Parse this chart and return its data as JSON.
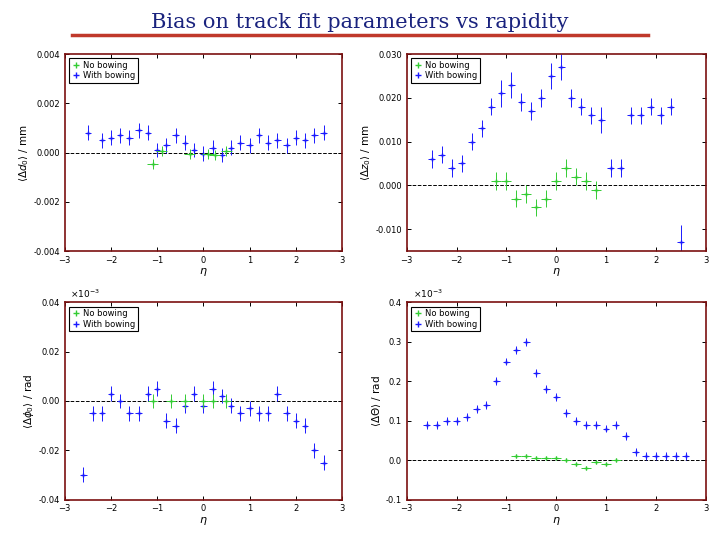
{
  "title": "Bias on track fit parameters vs rapidity",
  "title_color": "#1a237e",
  "underline_color": "#c0392b",
  "background_color": "#ffffff",
  "nb_color": "#33cc33",
  "wb_color": "#1a1aff",
  "border_color": "#7b1010",
  "subplots": [
    {
      "ylabel": "$\\langle\\Delta d_0\\rangle$ / mm",
      "xlabel": "$\\eta$",
      "xlim": [
        -3,
        3
      ],
      "ylim": [
        -0.004,
        0.004
      ],
      "yticks": [
        -0.004,
        -0.002,
        0.0,
        0.002,
        0.004
      ],
      "xticks": [
        -3,
        -2,
        -1,
        0,
        1,
        2,
        3
      ],
      "legend_loc": "upper left",
      "scale_factor": 1,
      "scale_label": "",
      "nb_x": [
        -1.1,
        -0.9,
        -0.3,
        0.1,
        0.25,
        0.5
      ],
      "nb_y": [
        -0.00045,
        5e-05,
        -5e-05,
        -5e-05,
        -0.0001,
        5e-05
      ],
      "nb_ex": [
        0.12,
        0.12,
        0.12,
        0.12,
        0.12,
        0.12
      ],
      "nb_ey": [
        0.0002,
        0.0002,
        0.0002,
        0.0002,
        0.0002,
        0.0002
      ],
      "wb_x": [
        -2.5,
        -2.2,
        -2.0,
        -1.8,
        -1.6,
        -1.4,
        -1.2,
        -1.0,
        -0.8,
        -0.6,
        -0.4,
        -0.2,
        0.0,
        0.2,
        0.4,
        0.6,
        0.8,
        1.0,
        1.2,
        1.4,
        1.6,
        1.8,
        2.0,
        2.2,
        2.4,
        2.6
      ],
      "wb_y": [
        0.0008,
        0.0005,
        0.0006,
        0.0007,
        0.0006,
        0.0009,
        0.0008,
        0.0001,
        0.0003,
        0.0007,
        0.0004,
        0.0001,
        -5e-05,
        0.0002,
        -0.0001,
        0.0002,
        0.0004,
        0.0003,
        0.0007,
        0.0004,
        0.0005,
        0.0003,
        0.0006,
        0.0005,
        0.0007,
        0.0008
      ],
      "wb_ex": [
        0.07,
        0.07,
        0.07,
        0.07,
        0.07,
        0.07,
        0.07,
        0.07,
        0.07,
        0.07,
        0.07,
        0.07,
        0.07,
        0.07,
        0.07,
        0.07,
        0.07,
        0.07,
        0.07,
        0.07,
        0.07,
        0.07,
        0.07,
        0.07,
        0.07,
        0.07
      ],
      "wb_ey": [
        0.0003,
        0.0003,
        0.0003,
        0.0003,
        0.0003,
        0.0003,
        0.0003,
        0.0003,
        0.0003,
        0.0003,
        0.0003,
        0.0003,
        0.0003,
        0.0003,
        0.0003,
        0.0003,
        0.0003,
        0.0003,
        0.0003,
        0.0003,
        0.0003,
        0.0003,
        0.0003,
        0.0003,
        0.0003,
        0.0003
      ]
    },
    {
      "ylabel": "$\\langle\\Delta z_0\\rangle$ / mm",
      "xlabel": "$\\eta$",
      "xlim": [
        -3,
        3
      ],
      "ylim": [
        -0.015,
        0.03
      ],
      "yticks": [
        -0.01,
        0.0,
        0.01,
        0.02,
        0.03
      ],
      "xticks": [
        -3,
        -2,
        -1,
        0,
        1,
        2,
        3
      ],
      "legend_loc": "upper left",
      "scale_factor": 1,
      "scale_label": "",
      "nb_x": [
        -1.2,
        -1.0,
        -0.8,
        -0.6,
        -0.4,
        -0.2,
        0.0,
        0.2,
        0.4,
        0.6,
        0.8
      ],
      "nb_y": [
        0.001,
        0.001,
        -0.003,
        -0.002,
        -0.005,
        -0.003,
        0.001,
        0.004,
        0.002,
        0.001,
        -0.001
      ],
      "nb_ex": [
        0.1,
        0.1,
        0.1,
        0.1,
        0.1,
        0.1,
        0.1,
        0.1,
        0.1,
        0.1,
        0.1
      ],
      "nb_ey": [
        0.002,
        0.002,
        0.002,
        0.002,
        0.002,
        0.002,
        0.002,
        0.002,
        0.002,
        0.002,
        0.002
      ],
      "wb_x": [
        -2.5,
        -2.3,
        -2.1,
        -1.9,
        -1.7,
        -1.5,
        -1.3,
        -1.1,
        -0.9,
        -0.7,
        -0.5,
        -0.3,
        -0.1,
        0.1,
        0.3,
        0.5,
        0.7,
        0.9,
        1.1,
        1.3,
        1.5,
        1.7,
        1.9,
        2.1,
        2.3,
        2.5
      ],
      "wb_y": [
        0.006,
        0.007,
        0.004,
        0.005,
        0.01,
        0.013,
        0.018,
        0.021,
        0.023,
        0.019,
        0.017,
        0.02,
        0.025,
        0.027,
        0.02,
        0.018,
        0.016,
        0.015,
        0.004,
        0.004,
        0.016,
        0.016,
        0.018,
        0.016,
        0.018,
        -0.013
      ],
      "wb_ex": [
        0.07,
        0.07,
        0.07,
        0.07,
        0.07,
        0.07,
        0.07,
        0.07,
        0.07,
        0.07,
        0.07,
        0.07,
        0.07,
        0.07,
        0.07,
        0.07,
        0.07,
        0.07,
        0.07,
        0.07,
        0.07,
        0.07,
        0.07,
        0.07,
        0.07,
        0.07
      ],
      "wb_ey": [
        0.002,
        0.002,
        0.002,
        0.002,
        0.002,
        0.002,
        0.002,
        0.003,
        0.003,
        0.002,
        0.002,
        0.002,
        0.003,
        0.003,
        0.002,
        0.002,
        0.002,
        0.003,
        0.002,
        0.002,
        0.002,
        0.002,
        0.002,
        0.002,
        0.002,
        0.004
      ]
    },
    {
      "ylabel": "$\\langle\\Delta\\phi_0\\rangle$ / rad",
      "xlabel": "$\\eta$",
      "xlim": [
        -3,
        3
      ],
      "ylim": [
        -4e-05,
        4e-05
      ],
      "yticks": [
        -4e-05,
        -2e-05,
        0.0,
        2e-05,
        4e-05
      ],
      "ytick_labels": [
        "-0.04",
        "-0.02",
        "0.00",
        "0.02",
        "0.04"
      ],
      "xticks": [
        -3,
        -2,
        -1,
        0,
        1,
        2,
        3
      ],
      "legend_loc": "upper left",
      "scale_factor": 1000,
      "scale_label": "$\\times10^{-3}$",
      "nb_x": [
        -1.1,
        -0.7,
        -0.4,
        0.0,
        0.2,
        0.5
      ],
      "nb_y": [
        0.0,
        0.0,
        0.0,
        0.0,
        0.0,
        0.0
      ],
      "nb_ex": [
        0.1,
        0.1,
        0.1,
        0.1,
        0.1,
        0.1
      ],
      "nb_ey": [
        3e-06,
        3e-06,
        3e-06,
        3e-06,
        3e-06,
        3e-06
      ],
      "wb_x": [
        -2.6,
        -2.4,
        -2.2,
        -2.0,
        -1.8,
        -1.6,
        -1.4,
        -1.2,
        -1.0,
        -0.8,
        -0.6,
        -0.4,
        -0.2,
        0.0,
        0.2,
        0.4,
        0.6,
        0.8,
        1.0,
        1.2,
        1.4,
        1.6,
        1.8,
        2.0,
        2.2,
        2.4,
        2.6
      ],
      "wb_y": [
        -3e-05,
        -5e-06,
        -5e-06,
        3e-06,
        0.0,
        -5e-06,
        -5e-06,
        3e-06,
        5e-06,
        -8e-06,
        -1e-05,
        -2e-06,
        3e-06,
        -2e-06,
        5e-06,
        2e-06,
        -2e-06,
        -5e-06,
        -3e-06,
        -5e-06,
        -5e-06,
        3e-06,
        -5e-06,
        -8e-06,
        -1e-05,
        -2e-05,
        -2.5e-05
      ],
      "wb_ex": [
        0.07,
        0.07,
        0.07,
        0.07,
        0.07,
        0.07,
        0.07,
        0.07,
        0.07,
        0.07,
        0.07,
        0.07,
        0.07,
        0.07,
        0.07,
        0.07,
        0.07,
        0.07,
        0.07,
        0.07,
        0.07,
        0.07,
        0.07,
        0.07,
        0.07,
        0.07,
        0.07
      ],
      "wb_ey": [
        3e-06,
        3e-06,
        3e-06,
        3e-06,
        3e-06,
        3e-06,
        3e-06,
        3e-06,
        3e-06,
        3e-06,
        3e-06,
        3e-06,
        3e-06,
        3e-06,
        3e-06,
        3e-06,
        3e-06,
        3e-06,
        3e-06,
        3e-06,
        3e-06,
        3e-06,
        3e-06,
        3e-06,
        3e-06,
        3e-06,
        3e-06
      ]
    },
    {
      "ylabel": "$\\langle\\Delta\\Theta\\rangle$ / rad",
      "xlabel": "$\\eta$",
      "xlim": [
        -3,
        3
      ],
      "ylim": [
        -0.0001,
        0.0004
      ],
      "yticks": [
        -0.0001,
        0.0,
        0.0001,
        0.0002,
        0.0003,
        0.0004
      ],
      "ytick_labels": [
        "-0.1",
        "0.0",
        "0.1",
        "0.2",
        "0.3",
        "0.4"
      ],
      "xticks": [
        -3,
        -2,
        -1,
        0,
        1,
        2,
        3
      ],
      "legend_loc": "upper left",
      "scale_factor": 1000,
      "scale_label": "$\\times10^{-3}$",
      "nb_x": [
        -0.8,
        -0.6,
        -0.4,
        -0.2,
        0.0,
        0.2,
        0.4,
        0.6,
        0.8,
        1.0,
        1.2
      ],
      "nb_y": [
        1e-05,
        1e-05,
        5e-06,
        5e-06,
        5e-06,
        0.0,
        -1e-05,
        -2e-05,
        -5e-06,
        -1e-05,
        0.0
      ],
      "nb_ex": [
        0.1,
        0.1,
        0.1,
        0.1,
        0.1,
        0.1,
        0.1,
        0.1,
        0.1,
        0.1,
        0.1
      ],
      "nb_ey": [
        5e-06,
        5e-06,
        5e-06,
        5e-06,
        5e-06,
        5e-06,
        5e-06,
        5e-06,
        5e-06,
        5e-06,
        5e-06
      ],
      "wb_x": [
        -2.6,
        -2.4,
        -2.2,
        -2.0,
        -1.8,
        -1.6,
        -1.4,
        -1.2,
        -1.0,
        -0.8,
        -0.6,
        -0.4,
        -0.2,
        0.0,
        0.2,
        0.4,
        0.6,
        0.8,
        1.0,
        1.2,
        1.4,
        1.6,
        1.8,
        2.0,
        2.2,
        2.4,
        2.6
      ],
      "wb_y": [
        9e-05,
        9e-05,
        0.0001,
        0.0001,
        0.00011,
        0.00013,
        0.00014,
        0.0002,
        0.00025,
        0.00028,
        0.0003,
        0.00022,
        0.00018,
        0.00016,
        0.00012,
        0.0001,
        9e-05,
        9e-05,
        8e-05,
        9e-05,
        6e-05,
        2e-05,
        1e-05,
        1e-05,
        1e-05,
        1e-05,
        1e-05
      ],
      "wb_ex": [
        0.07,
        0.07,
        0.07,
        0.07,
        0.07,
        0.07,
        0.07,
        0.07,
        0.07,
        0.07,
        0.07,
        0.07,
        0.07,
        0.07,
        0.07,
        0.07,
        0.07,
        0.07,
        0.07,
        0.07,
        0.07,
        0.07,
        0.07,
        0.07,
        0.07,
        0.07,
        0.07
      ],
      "wb_ey": [
        1e-05,
        1e-05,
        1e-05,
        1e-05,
        1e-05,
        1e-05,
        1e-05,
        1e-05,
        1e-05,
        1e-05,
        1e-05,
        1e-05,
        1e-05,
        1e-05,
        1e-05,
        1e-05,
        1e-05,
        1e-05,
        1e-05,
        1e-05,
        1e-05,
        1e-05,
        1e-05,
        1e-05,
        1e-05,
        1e-05,
        1e-05
      ]
    }
  ]
}
